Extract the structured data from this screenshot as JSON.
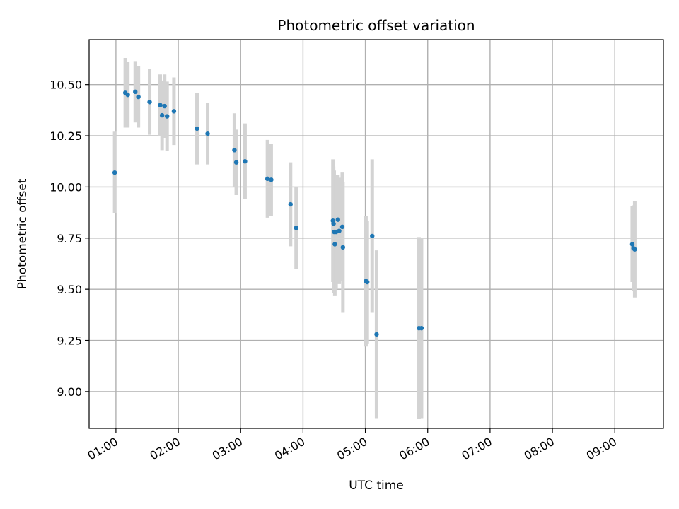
{
  "chart_data": {
    "type": "scatter",
    "title": "Photometric offset variation",
    "xlabel": "UTC time",
    "ylabel": "Photometric offset",
    "x_unit": "hours UTC",
    "xlim": [
      0.57,
      9.78
    ],
    "ylim": [
      8.82,
      10.72
    ],
    "xticks": [
      1,
      2,
      3,
      4,
      5,
      6,
      7,
      8,
      9
    ],
    "xtick_labels": [
      "01:00",
      "02:00",
      "03:00",
      "04:00",
      "05:00",
      "06:00",
      "07:00",
      "08:00",
      "09:00"
    ],
    "yticks": [
      9.0,
      9.25,
      9.5,
      9.75,
      10.0,
      10.25,
      10.5
    ],
    "ytick_labels": [
      "9.00",
      "9.25",
      "9.50",
      "9.75",
      "10.00",
      "10.25",
      "10.50"
    ],
    "grid": true,
    "legend": false,
    "colors": {
      "point": "#1f77b4",
      "errorbar": "#d3d3d3",
      "grid": "#b0b0b0"
    },
    "points": [
      {
        "x": 0.98,
        "y": 10.07,
        "err": 0.2
      },
      {
        "x": 1.15,
        "y": 10.46,
        "err": 0.17
      },
      {
        "x": 1.19,
        "y": 10.45,
        "err": 0.16
      },
      {
        "x": 1.31,
        "y": 10.465,
        "err": 0.15
      },
      {
        "x": 1.36,
        "y": 10.44,
        "err": 0.15
      },
      {
        "x": 1.54,
        "y": 10.415,
        "err": 0.16
      },
      {
        "x": 1.71,
        "y": 10.4,
        "err": 0.15
      },
      {
        "x": 1.74,
        "y": 10.35,
        "err": 0.17
      },
      {
        "x": 1.78,
        "y": 10.395,
        "err": 0.155
      },
      {
        "x": 1.82,
        "y": 10.345,
        "err": 0.17
      },
      {
        "x": 1.93,
        "y": 10.37,
        "err": 0.165
      },
      {
        "x": 2.3,
        "y": 10.285,
        "err": 0.175
      },
      {
        "x": 2.47,
        "y": 10.26,
        "err": 0.15
      },
      {
        "x": 2.9,
        "y": 10.18,
        "err": 0.18
      },
      {
        "x": 2.93,
        "y": 10.12,
        "err": 0.16
      },
      {
        "x": 3.07,
        "y": 10.125,
        "err": 0.185
      },
      {
        "x": 3.43,
        "y": 10.04,
        "err": 0.19
      },
      {
        "x": 3.49,
        "y": 10.035,
        "err": 0.175
      },
      {
        "x": 3.8,
        "y": 9.915,
        "err": 0.205
      },
      {
        "x": 3.89,
        "y": 9.8,
        "err": 0.2
      },
      {
        "x": 4.48,
        "y": 9.835,
        "err": 0.3
      },
      {
        "x": 4.49,
        "y": 9.82,
        "err": 0.28
      },
      {
        "x": 4.5,
        "y": 9.78,
        "err": 0.3
      },
      {
        "x": 4.51,
        "y": 9.72,
        "err": 0.25
      },
      {
        "x": 4.53,
        "y": 9.78,
        "err": 0.28
      },
      {
        "x": 4.56,
        "y": 9.84,
        "err": 0.22
      },
      {
        "x": 4.58,
        "y": 9.785,
        "err": 0.26
      },
      {
        "x": 4.63,
        "y": 9.805,
        "err": 0.265
      },
      {
        "x": 4.64,
        "y": 9.705,
        "err": 0.32
      },
      {
        "x": 5.01,
        "y": 9.54,
        "err": 0.32
      },
      {
        "x": 5.03,
        "y": 9.535,
        "err": 0.3
      },
      {
        "x": 5.11,
        "y": 9.76,
        "err": 0.375
      },
      {
        "x": 5.18,
        "y": 9.28,
        "err": 0.41
      },
      {
        "x": 5.86,
        "y": 9.31,
        "err": 0.445
      },
      {
        "x": 5.9,
        "y": 9.31,
        "err": 0.44
      },
      {
        "x": 9.28,
        "y": 9.72,
        "err": 0.185
      },
      {
        "x": 9.3,
        "y": 9.7,
        "err": 0.21
      },
      {
        "x": 9.32,
        "y": 9.695,
        "err": 0.235
      }
    ]
  }
}
